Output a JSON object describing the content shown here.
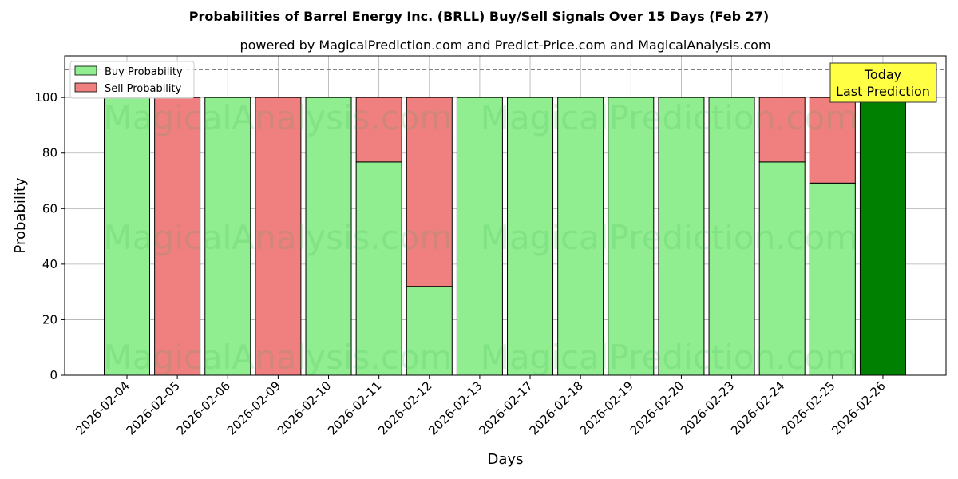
{
  "chart_data": {
    "type": "bar",
    "stacked": true,
    "title": "Probabilities of Barrel Energy Inc. (BRLL) Buy/Sell Signals Over 15 Days (Feb 27)",
    "subtitle": "powered by MagicalPrediction.com and Predict-Price.com and MagicalAnalysis.com",
    "xlabel": "Days",
    "ylabel": "Probability",
    "ylim": [
      0,
      115
    ],
    "yticks": [
      0,
      20,
      40,
      60,
      80,
      100
    ],
    "grid": true,
    "legend_position": "top-left",
    "reference_line": 110,
    "categories": [
      "2026-02-04",
      "2026-02-05",
      "2026-02-06",
      "2026-02-09",
      "2026-02-10",
      "2026-02-11",
      "2026-02-12",
      "2026-02-13",
      "2026-02-17",
      "2026-02-18",
      "2026-02-19",
      "2026-02-20",
      "2026-02-23",
      "2026-02-24",
      "2026-02-25",
      "2026-02-26"
    ],
    "series": [
      {
        "name": "Buy Probability",
        "color": "#90ee90",
        "values": [
          100,
          0,
          100,
          0,
          100,
          76.8,
          32,
          100,
          100,
          100,
          100,
          100,
          100,
          76.8,
          69.2,
          100
        ]
      },
      {
        "name": "Sell Probability",
        "color": "#f08080",
        "values": [
          0,
          100,
          0,
          100,
          0,
          23.2,
          68,
          0,
          0,
          0,
          0,
          0,
          0,
          23.2,
          30.8,
          0
        ]
      }
    ],
    "highlight": {
      "category": "2026-02-26",
      "color": "#008000"
    },
    "annotation": {
      "line1": "Today",
      "line2": "Last Prediction",
      "background": "#ffff44"
    },
    "watermarks": [
      "MagicalAnalysis.com",
      "MagicalPrediction.com"
    ]
  }
}
